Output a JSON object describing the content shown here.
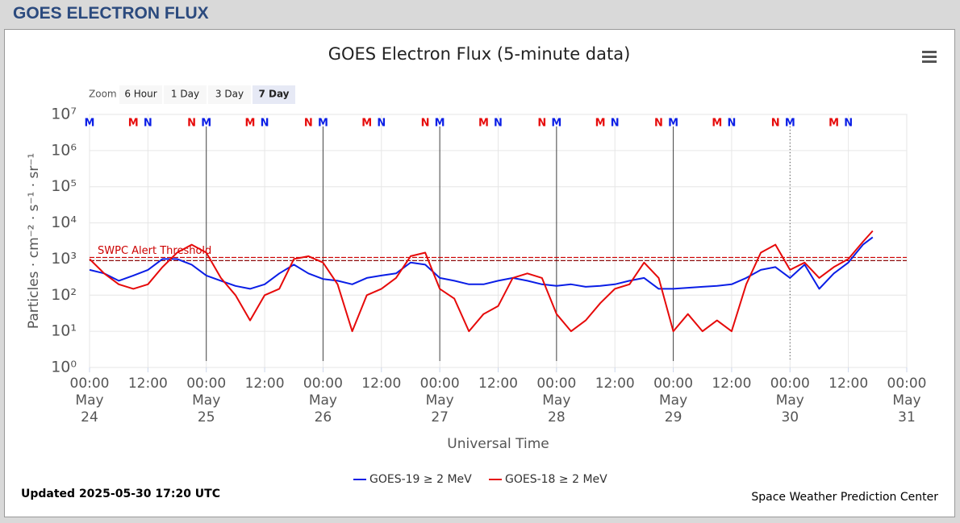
{
  "header": {
    "title": "GOES ELECTRON FLUX"
  },
  "chart_data": {
    "type": "line",
    "title": "GOES Electron Flux (5-minute data)",
    "xlabel": "Universal Time",
    "ylabel": "Particles · cm⁻² · s⁻¹ · sr⁻¹",
    "zoom": {
      "label": "Zoom",
      "buttons": [
        "6 Hour",
        "1 Day",
        "3 Day",
        "7 Day"
      ],
      "selected": 3
    },
    "log_y": true,
    "grid": true,
    "ylim": [
      1,
      10000000
    ],
    "yticks": [
      {
        "value": 1,
        "label": "10⁰"
      },
      {
        "value": 10,
        "label": "10¹"
      },
      {
        "value": 100,
        "label": "10²"
      },
      {
        "value": 1000,
        "label": "10³"
      },
      {
        "value": 10000,
        "label": "10⁴"
      },
      {
        "value": 100000,
        "label": "10⁵"
      },
      {
        "value": 1000000,
        "label": "10⁶"
      },
      {
        "value": 10000000,
        "label": "10⁷"
      }
    ],
    "xlim": [
      0,
      168
    ],
    "xticks": [
      {
        "value": 0,
        "label": "00:00 May 24"
      },
      {
        "value": 12,
        "label": "12:00"
      },
      {
        "value": 24,
        "label": "00:00 May 25"
      },
      {
        "value": 36,
        "label": "12:00"
      },
      {
        "value": 48,
        "label": "00:00 May 26"
      },
      {
        "value": 60,
        "label": "12:00"
      },
      {
        "value": 72,
        "label": "00:00 May 27"
      },
      {
        "value": 84,
        "label": "12:00"
      },
      {
        "value": 96,
        "label": "00:00 May 28"
      },
      {
        "value": 108,
        "label": "12:00"
      },
      {
        "value": 120,
        "label": "00:00 May 29"
      },
      {
        "value": 132,
        "label": "12:00"
      },
      {
        "value": 144,
        "label": "00:00 May 30"
      },
      {
        "value": 156,
        "label": "12:00"
      },
      {
        "value": 168,
        "label": "00:00 May 31"
      }
    ],
    "x": [
      0,
      3,
      6,
      9,
      12,
      15,
      18,
      21,
      24,
      27,
      30,
      33,
      36,
      39,
      42,
      45,
      48,
      51,
      54,
      57,
      60,
      63,
      66,
      69,
      72,
      75,
      78,
      81,
      84,
      87,
      90,
      93,
      96,
      99,
      102,
      105,
      108,
      111,
      114,
      117,
      120,
      123,
      126,
      129,
      132,
      135,
      138,
      141,
      144,
      147,
      150,
      153,
      156,
      159,
      161
    ],
    "series": [
      {
        "name": "GOES-19 ≥ 2 MeV",
        "color": "#0a1ee6",
        "values": [
          500,
          400,
          250,
          350,
          500,
          1000,
          1000,
          700,
          350,
          250,
          180,
          150,
          200,
          400,
          700,
          400,
          280,
          250,
          200,
          300,
          350,
          400,
          800,
          700,
          300,
          250,
          200,
          200,
          250,
          300,
          250,
          200,
          180,
          200,
          170,
          180,
          200,
          250,
          300,
          150,
          150,
          160,
          170,
          180,
          200,
          300,
          500,
          600,
          300,
          700,
          150,
          400,
          800,
          2500,
          4000
        ]
      },
      {
        "name": "GOES-18 ≥ 2 MeV",
        "color": "#e60a0a",
        "values": [
          1000,
          400,
          200,
          150,
          200,
          600,
          1500,
          2500,
          1500,
          300,
          100,
          20,
          100,
          150,
          1000,
          1200,
          800,
          200,
          10,
          100,
          150,
          300,
          1200,
          1500,
          150,
          80,
          10,
          30,
          50,
          300,
          400,
          300,
          30,
          10,
          20,
          60,
          150,
          200,
          800,
          300,
          10,
          30,
          10,
          20,
          10,
          200,
          1500,
          2500,
          500,
          800,
          300,
          600,
          1000,
          3000,
          6000
        ]
      }
    ],
    "threshold": {
      "text": "SWPC Alert Threshold",
      "value": 1000,
      "color": "#cc0000"
    },
    "orbit_markers": [
      {
        "text": "M",
        "color": "#0a1ee6",
        "x": [
          0,
          24,
          48,
          72,
          96,
          120,
          144
        ]
      },
      {
        "text": "N",
        "color": "#0a1ee6",
        "x": [
          12,
          36,
          60,
          84,
          108,
          132,
          156
        ]
      },
      {
        "text": "M",
        "color": "#e60a0a",
        "x": [
          9,
          33,
          57,
          81,
          105,
          129,
          153
        ]
      },
      {
        "text": "N",
        "color": "#e60a0a",
        "x": [
          21,
          45,
          69,
          93,
          117,
          141
        ]
      }
    ],
    "updated": "Updated 2025-05-30 17:20 UTC",
    "credit": "Space Weather Prediction Center"
  }
}
